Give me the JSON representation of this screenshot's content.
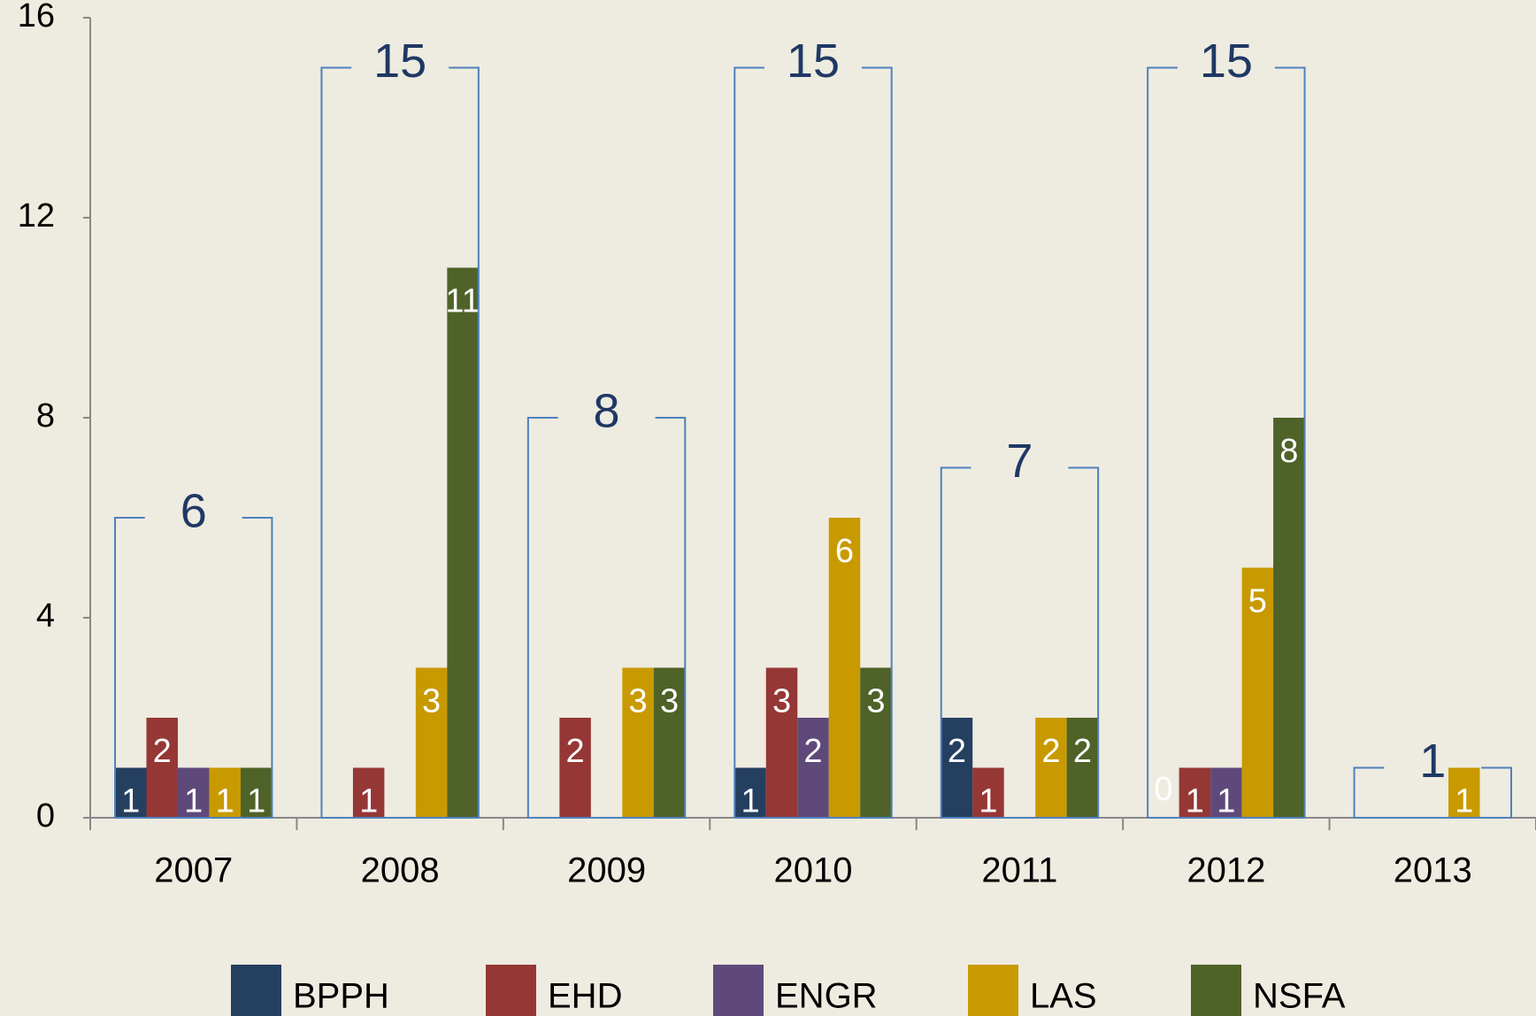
{
  "chart_data": {
    "type": "bar",
    "categories": [
      "2007",
      "2008",
      "2009",
      "2010",
      "2011",
      "2012",
      "2013"
    ],
    "series": [
      {
        "name": "BPPH",
        "color": "#243f60",
        "values": [
          1,
          null,
          null,
          1,
          2,
          0,
          null
        ]
      },
      {
        "name": "EHD",
        "color": "#953735",
        "values": [
          2,
          1,
          2,
          3,
          1,
          1,
          null
        ]
      },
      {
        "name": "ENGR",
        "color": "#5f497a",
        "values": [
          1,
          null,
          null,
          2,
          null,
          1,
          null
        ]
      },
      {
        "name": "LAS",
        "color": "#c89a00",
        "values": [
          1,
          3,
          3,
          6,
          2,
          5,
          1
        ]
      },
      {
        "name": "NSFA",
        "color": "#4f6228",
        "values": [
          1,
          11,
          3,
          3,
          2,
          8,
          null
        ]
      }
    ],
    "totals": [
      6,
      15,
      8,
      15,
      7,
      15,
      1
    ],
    "totals_color": "#4f81bd",
    "ylim": [
      0,
      16
    ],
    "yticks": [
      0,
      4,
      8,
      12,
      16
    ],
    "grid": false,
    "legend": "bottom"
  }
}
